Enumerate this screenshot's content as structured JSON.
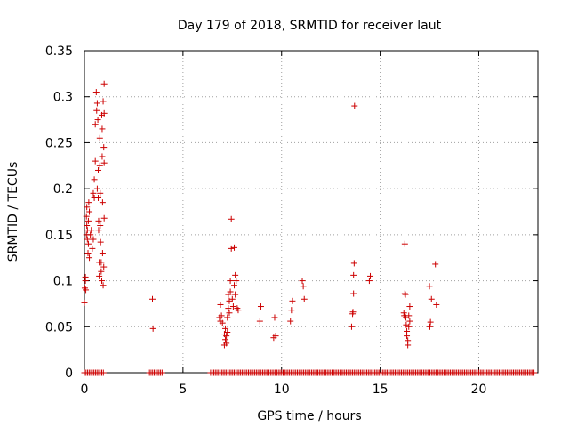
{
  "chart_data": {
    "type": "scatter",
    "title": "Day 179 of 2018, SRMTID for receiver laut",
    "xlabel": "GPS time / hours",
    "ylabel": "SRMTID / TECUs",
    "xlim": [
      0,
      23
    ],
    "ylim": [
      0,
      0.35
    ],
    "xticks": [
      0,
      5,
      10,
      15,
      20
    ],
    "yticks": [
      0,
      0.05,
      0.1,
      0.15,
      0.2,
      0.25,
      0.3,
      0.35
    ],
    "xtick_labels": [
      "0",
      "5",
      "10",
      "15",
      "20"
    ],
    "ytick_labels": [
      "0",
      "0.05",
      "0.1",
      "0.15",
      "0.2",
      "0.25",
      "0.3",
      "0.35"
    ],
    "grid": true,
    "marker": "+",
    "color": "#cc0000",
    "series": [
      {
        "name": "SRMTID",
        "points": [
          [
            0.0,
            0.076
          ],
          [
            0.02,
            0.092
          ],
          [
            0.05,
            0.1
          ],
          [
            0.05,
            0.104
          ],
          [
            0.07,
            0.09
          ],
          [
            0.1,
            0.17
          ],
          [
            0.1,
            0.15
          ],
          [
            0.12,
            0.18
          ],
          [
            0.12,
            0.16
          ],
          [
            0.15,
            0.155
          ],
          [
            0.15,
            0.145
          ],
          [
            0.18,
            0.13
          ],
          [
            0.2,
            0.14
          ],
          [
            0.2,
            0.165
          ],
          [
            0.22,
            0.185
          ],
          [
            0.25,
            0.175
          ],
          [
            0.25,
            0.125
          ],
          [
            0.3,
            0.15
          ],
          [
            0.35,
            0.155
          ],
          [
            0.4,
            0.135
          ],
          [
            0.45,
            0.195
          ],
          [
            0.45,
            0.145
          ],
          [
            0.5,
            0.21
          ],
          [
            0.5,
            0.19
          ],
          [
            0.55,
            0.23
          ],
          [
            0.55,
            0.27
          ],
          [
            0.6,
            0.305
          ],
          [
            0.62,
            0.285
          ],
          [
            0.65,
            0.293
          ],
          [
            0.65,
            0.2
          ],
          [
            0.68,
            0.275
          ],
          [
            0.7,
            0.22
          ],
          [
            0.7,
            0.19
          ],
          [
            0.72,
            0.165
          ],
          [
            0.72,
            0.155
          ],
          [
            0.75,
            0.12
          ],
          [
            0.75,
            0.105
          ],
          [
            0.78,
            0.255
          ],
          [
            0.78,
            0.225
          ],
          [
            0.8,
            0.195
          ],
          [
            0.8,
            0.16
          ],
          [
            0.82,
            0.142
          ],
          [
            0.85,
            0.12
          ],
          [
            0.85,
            0.11
          ],
          [
            0.88,
            0.28
          ],
          [
            0.88,
            0.1
          ],
          [
            0.9,
            0.265
          ],
          [
            0.9,
            0.235
          ],
          [
            0.92,
            0.185
          ],
          [
            0.92,
            0.13
          ],
          [
            0.95,
            0.295
          ],
          [
            0.95,
            0.095
          ],
          [
            0.98,
            0.245
          ],
          [
            0.98,
            0.115
          ],
          [
            1.0,
            0.314
          ],
          [
            1.0,
            0.282
          ],
          [
            1.0,
            0.228
          ],
          [
            1.0,
            0.168
          ],
          [
            3.45,
            0.08
          ],
          [
            3.48,
            0.048
          ],
          [
            6.85,
            0.06
          ],
          [
            6.9,
            0.056
          ],
          [
            6.9,
            0.074
          ],
          [
            6.95,
            0.062
          ],
          [
            7.0,
            0.054
          ],
          [
            7.1,
            0.03
          ],
          [
            7.1,
            0.042
          ],
          [
            7.15,
            0.036
          ],
          [
            7.15,
            0.048
          ],
          [
            7.2,
            0.04
          ],
          [
            7.2,
            0.032
          ],
          [
            7.25,
            0.044
          ],
          [
            7.25,
            0.06
          ],
          [
            7.3,
            0.07
          ],
          [
            7.3,
            0.085
          ],
          [
            7.35,
            0.078
          ],
          [
            7.35,
            0.065
          ],
          [
            7.4,
            0.088
          ],
          [
            7.4,
            0.1
          ],
          [
            7.45,
            0.135
          ],
          [
            7.45,
            0.167
          ],
          [
            7.5,
            0.08
          ],
          [
            7.55,
            0.072
          ],
          [
            7.6,
            0.136
          ],
          [
            7.6,
            0.095
          ],
          [
            7.65,
            0.085
          ],
          [
            7.65,
            0.106
          ],
          [
            7.7,
            0.1
          ],
          [
            7.75,
            0.07
          ],
          [
            7.8,
            0.068
          ],
          [
            8.9,
            0.056
          ],
          [
            8.95,
            0.072
          ],
          [
            9.6,
            0.038
          ],
          [
            9.65,
            0.06
          ],
          [
            9.7,
            0.04
          ],
          [
            10.45,
            0.056
          ],
          [
            10.5,
            0.068
          ],
          [
            10.55,
            0.078
          ],
          [
            11.05,
            0.1
          ],
          [
            11.1,
            0.094
          ],
          [
            11.15,
            0.08
          ],
          [
            13.55,
            0.05
          ],
          [
            13.6,
            0.064
          ],
          [
            13.62,
            0.066
          ],
          [
            13.65,
            0.086
          ],
          [
            13.65,
            0.106
          ],
          [
            13.68,
            0.119
          ],
          [
            13.7,
            0.29
          ],
          [
            14.45,
            0.1
          ],
          [
            14.5,
            0.105
          ],
          [
            16.2,
            0.065
          ],
          [
            16.22,
            0.062
          ],
          [
            16.25,
            0.14
          ],
          [
            16.25,
            0.086
          ],
          [
            16.28,
            0.085
          ],
          [
            16.3,
            0.06
          ],
          [
            16.32,
            0.052
          ],
          [
            16.35,
            0.045
          ],
          [
            16.35,
            0.04
          ],
          [
            16.4,
            0.035
          ],
          [
            16.4,
            0.03
          ],
          [
            16.45,
            0.05
          ],
          [
            16.45,
            0.062
          ],
          [
            16.5,
            0.056
          ],
          [
            16.5,
            0.072
          ],
          [
            17.5,
            0.094
          ],
          [
            17.52,
            0.05
          ],
          [
            17.55,
            0.055
          ],
          [
            17.6,
            0.08
          ],
          [
            17.8,
            0.118
          ],
          [
            17.85,
            0.074
          ]
        ],
        "zero_ranges": [
          [
            0.0,
            1.0
          ],
          [
            3.3,
            4.0
          ],
          [
            6.4,
            22.8
          ]
        ]
      }
    ]
  }
}
